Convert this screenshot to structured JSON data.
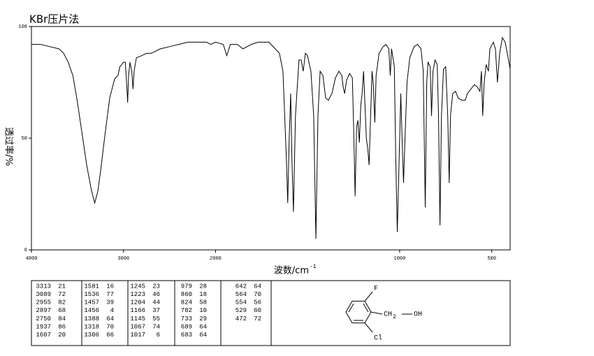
{
  "chart_data": {
    "type": "line",
    "title": "KBr压片法",
    "ylabel": "透过率/%",
    "xlabel": "波数/cm",
    "xlabel_superscript": "-1",
    "xlim": [
      4000,
      400
    ],
    "x_scale_change": {
      "at": 2000,
      "factor": 2
    },
    "xticks": [
      4000,
      3000,
      2000,
      1000,
      500
    ],
    "ylim": [
      0,
      100
    ],
    "yticks": [
      0,
      50,
      100
    ],
    "color": "#000000",
    "x": [
      4000,
      3900,
      3800,
      3700,
      3650,
      3600,
      3550,
      3500,
      3450,
      3400,
      3350,
      3313,
      3280,
      3250,
      3200,
      3150,
      3100,
      3089,
      3060,
      3040,
      3000,
      2980,
      2960,
      2955,
      2945,
      2930,
      2910,
      2897,
      2885,
      2860,
      2800,
      2750,
      2700,
      2600,
      2500,
      2400,
      2300,
      2200,
      2100,
      2050,
      2000,
      1958,
      1939,
      1920,
      1882,
      1851,
      1806,
      1768,
      1710,
      1653,
      1634,
      1615,
      1608,
      1600,
      1592,
      1585,
      1577,
      1566,
      1547,
      1535,
      1524,
      1512,
      1501,
      1482,
      1467,
      1455,
      1444,
      1432,
      1417,
      1402,
      1387,
      1368,
      1349,
      1330,
      1314,
      1307,
      1299,
      1288,
      1272,
      1257,
      1250,
      1242,
      1234,
      1227,
      1219,
      1211,
      1204,
      1196,
      1189,
      1181,
      1173,
      1166,
      1158,
      1150,
      1143,
      1135,
      1128,
      1112,
      1090,
      1074,
      1059,
      1051,
      1044,
      1029,
      1021,
      1013,
      1006,
      994,
      987,
      979,
      971,
      960,
      945,
      922,
      903,
      884,
      872,
      861,
      853,
      846,
      834,
      827,
      819,
      808,
      796,
      789,
      781,
      773,
      762,
      750,
      739,
      731,
      724,
      712,
      697,
      682,
      663,
      644,
      632,
      613,
      594,
      579,
      564,
      556,
      549,
      541,
      530,
      518,
      510,
      491,
      480,
      469,
      457,
      442,
      427,
      411,
      400
    ],
    "values": [
      92,
      92,
      91,
      90,
      88,
      84,
      78,
      66,
      52,
      38,
      27,
      21,
      26,
      35,
      52,
      68,
      76,
      77,
      78,
      82,
      84,
      84,
      70,
      66,
      78,
      84,
      80,
      72,
      80,
      86,
      87,
      88,
      88,
      90,
      91,
      92,
      93,
      93,
      93,
      92,
      93,
      92,
      87,
      92,
      92,
      90,
      92,
      93,
      93,
      88,
      80,
      40,
      21,
      50,
      70,
      40,
      17,
      60,
      85,
      85,
      80,
      88,
      87,
      80,
      60,
      5,
      60,
      80,
      78,
      68,
      67,
      70,
      77,
      80,
      78,
      73,
      70,
      76,
      79,
      77,
      55,
      24,
      55,
      58,
      48,
      65,
      70,
      80,
      66,
      50,
      45,
      38,
      60,
      80,
      74,
      57,
      78,
      88,
      91,
      92,
      90,
      78,
      90,
      82,
      40,
      8,
      30,
      70,
      50,
      30,
      50,
      75,
      86,
      91,
      92,
      90,
      80,
      19,
      75,
      84,
      82,
      60,
      80,
      85,
      83,
      60,
      11,
      60,
      81,
      82,
      60,
      30,
      60,
      70,
      71,
      68,
      67,
      67,
      70,
      72,
      74,
      73,
      71,
      80,
      60,
      75,
      83,
      80,
      90,
      93,
      90,
      75,
      88,
      95,
      93,
      86,
      81
    ]
  },
  "peak_table": {
    "columns": [
      [
        [
          3313,
          21
        ],
        [
          3089,
          72
        ],
        [
          2955,
          82
        ],
        [
          2897,
          68
        ],
        [
          2750,
          84
        ],
        [
          1937,
          86
        ],
        [
          1607,
          20
        ]
      ],
      [
        [
          1581,
          16
        ],
        [
          1536,
          77
        ],
        [
          1457,
          39
        ],
        [
          1456,
          4
        ],
        [
          1388,
          64
        ],
        [
          1318,
          70
        ],
        [
          1306,
          66
        ]
      ],
      [
        [
          1245,
          23
        ],
        [
          1223,
          46
        ],
        [
          1204,
          44
        ],
        [
          1166,
          37
        ],
        [
          1145,
          55
        ],
        [
          1067,
          74
        ],
        [
          1017,
          6
        ]
      ],
      [
        [
          979,
          28
        ],
        [
          860,
          18
        ],
        [
          824,
          58
        ],
        [
          782,
          10
        ],
        [
          733,
          29
        ],
        [
          689,
          64
        ],
        [
          683,
          64
        ]
      ],
      [
        [
          642,
          64
        ],
        [
          564,
          70
        ],
        [
          554,
          56
        ],
        [
          529,
          60
        ],
        [
          472,
          72
        ]
      ]
    ]
  },
  "structure": {
    "labels": [
      "F",
      "CH",
      "2",
      "OH",
      "Cl"
    ]
  }
}
